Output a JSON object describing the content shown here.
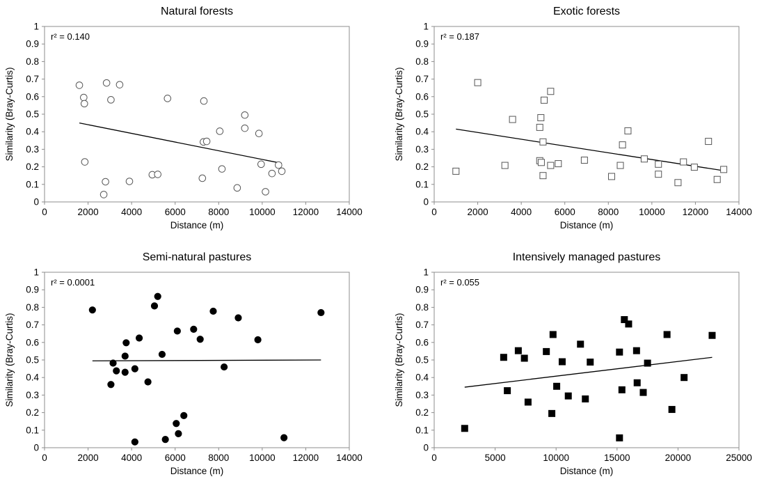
{
  "chart_data": [
    {
      "type": "scatter",
      "title": "Natural forests",
      "xlabel": "Distance (m)",
      "ylabel": "Similarity (Bray-Curtis)",
      "annotation": "r² = 0.140",
      "marker": "circle-open",
      "xlim": [
        0,
        14000
      ],
      "ylim": [
        0,
        1
      ],
      "xticks": [
        "0",
        "2000",
        "4000",
        "6000",
        "8000",
        "10000",
        "12000",
        "14000"
      ],
      "yticks": [
        "0",
        "0.1",
        "0.2",
        "0.3",
        "0.4",
        "0.5",
        "0.6",
        "0.7",
        "0.8",
        "0.9",
        "1"
      ],
      "grid": false,
      "points": [
        [
          1600,
          0.665
        ],
        [
          1800,
          0.595
        ],
        [
          1830,
          0.56
        ],
        [
          1850,
          0.228
        ],
        [
          2800,
          0.115
        ],
        [
          2720,
          0.042
        ],
        [
          2850,
          0.678
        ],
        [
          3050,
          0.582
        ],
        [
          3450,
          0.668
        ],
        [
          3900,
          0.117
        ],
        [
          4950,
          0.155
        ],
        [
          5200,
          0.157
        ],
        [
          5650,
          0.59
        ],
        [
          7250,
          0.135
        ],
        [
          7300,
          0.342
        ],
        [
          7320,
          0.575
        ],
        [
          7450,
          0.345
        ],
        [
          8050,
          0.403
        ],
        [
          8150,
          0.188
        ],
        [
          8850,
          0.08
        ],
        [
          9200,
          0.495
        ],
        [
          9200,
          0.42
        ],
        [
          9850,
          0.39
        ],
        [
          9950,
          0.215
        ],
        [
          10150,
          0.058
        ],
        [
          10450,
          0.162
        ],
        [
          10750,
          0.21
        ],
        [
          10900,
          0.175
        ]
      ],
      "trendline": [
        [
          1600,
          0.45
        ],
        [
          10900,
          0.22
        ]
      ]
    },
    {
      "type": "scatter",
      "title": "Exotic forests",
      "xlabel": "Distance (m)",
      "ylabel": "Similarity (Bray-Curtis)",
      "annotation": "r² = 0.187",
      "marker": "square-open",
      "xlim": [
        0,
        14000
      ],
      "ylim": [
        0,
        1
      ],
      "xticks": [
        "0",
        "2000",
        "4000",
        "6000",
        "8000",
        "10000",
        "12000",
        "14000"
      ],
      "yticks": [
        "0",
        "0.1",
        "0.2",
        "0.3",
        "0.4",
        "0.5",
        "0.6",
        "0.7",
        "0.8",
        "0.9",
        "1"
      ],
      "grid": false,
      "points": [
        [
          1000,
          0.175
        ],
        [
          2000,
          0.68
        ],
        [
          3250,
          0.208
        ],
        [
          3600,
          0.47
        ],
        [
          4850,
          0.235
        ],
        [
          4850,
          0.425
        ],
        [
          4900,
          0.48
        ],
        [
          4920,
          0.225
        ],
        [
          5000,
          0.15
        ],
        [
          5000,
          0.342
        ],
        [
          5050,
          0.58
        ],
        [
          5350,
          0.63
        ],
        [
          5350,
          0.208
        ],
        [
          5700,
          0.218
        ],
        [
          6900,
          0.238
        ],
        [
          8150,
          0.145
        ],
        [
          8550,
          0.208
        ],
        [
          8650,
          0.325
        ],
        [
          8900,
          0.405
        ],
        [
          9650,
          0.245
        ],
        [
          10300,
          0.215
        ],
        [
          10300,
          0.158
        ],
        [
          11200,
          0.11
        ],
        [
          11450,
          0.228
        ],
        [
          11950,
          0.198
        ],
        [
          12600,
          0.345
        ],
        [
          13000,
          0.128
        ],
        [
          13300,
          0.185
        ]
      ],
      "trendline": [
        [
          1000,
          0.415
        ],
        [
          13300,
          0.178
        ]
      ]
    },
    {
      "type": "scatter",
      "title": "Semi-natural pastures",
      "xlabel": "Distance (m)",
      "ylabel": "Similarity (Bray-Curtis)",
      "annotation": "r² = 0.0001",
      "marker": "circle-filled",
      "xlim": [
        0,
        14000
      ],
      "ylim": [
        0,
        1
      ],
      "xticks": [
        "0",
        "2000",
        "4000",
        "6000",
        "8000",
        "10000",
        "12000",
        "14000"
      ],
      "yticks": [
        "0",
        "0.1",
        "0.2",
        "0.3",
        "0.4",
        "0.5",
        "0.6",
        "0.7",
        "0.8",
        "0.9",
        "1"
      ],
      "grid": false,
      "points": [
        [
          2200,
          0.785
        ],
        [
          3050,
          0.36
        ],
        [
          3150,
          0.482
        ],
        [
          3300,
          0.438
        ],
        [
          3700,
          0.522
        ],
        [
          3700,
          0.43
        ],
        [
          3750,
          0.598
        ],
        [
          4150,
          0.45
        ],
        [
          4150,
          0.033
        ],
        [
          4350,
          0.625
        ],
        [
          4750,
          0.375
        ],
        [
          5050,
          0.808
        ],
        [
          5200,
          0.862
        ],
        [
          5400,
          0.532
        ],
        [
          5550,
          0.047
        ],
        [
          6050,
          0.138
        ],
        [
          6100,
          0.665
        ],
        [
          6150,
          0.08
        ],
        [
          6400,
          0.183
        ],
        [
          6850,
          0.675
        ],
        [
          7150,
          0.618
        ],
        [
          7750,
          0.778
        ],
        [
          8250,
          0.46
        ],
        [
          8900,
          0.74
        ],
        [
          9800,
          0.615
        ],
        [
          11000,
          0.057
        ],
        [
          12700,
          0.77
        ]
      ],
      "trendline": [
        [
          2200,
          0.495
        ],
        [
          12700,
          0.5
        ]
      ]
    },
    {
      "type": "scatter",
      "title": "Intensively managed pastures",
      "xlabel": "Distance (m)",
      "ylabel": "Similarity (Bray-Curtis)",
      "annotation": "r² = 0.055",
      "marker": "square-filled",
      "xlim": [
        0,
        25000
      ],
      "ylim": [
        0,
        1
      ],
      "xticks": [
        "0",
        "5000",
        "10000",
        "15000",
        "20000",
        "25000"
      ],
      "yticks": [
        "0",
        "0.1",
        "0.2",
        "0.3",
        "0.4",
        "0.5",
        "0.6",
        "0.7",
        "0.8",
        "0.9",
        "1"
      ],
      "grid": false,
      "points": [
        [
          2500,
          0.11
        ],
        [
          5700,
          0.515
        ],
        [
          6000,
          0.325
        ],
        [
          6900,
          0.553
        ],
        [
          7400,
          0.51
        ],
        [
          7700,
          0.26
        ],
        [
          9200,
          0.548
        ],
        [
          9650,
          0.195
        ],
        [
          9750,
          0.645
        ],
        [
          10050,
          0.35
        ],
        [
          10500,
          0.49
        ],
        [
          11000,
          0.295
        ],
        [
          12000,
          0.59
        ],
        [
          12400,
          0.278
        ],
        [
          12800,
          0.488
        ],
        [
          15200,
          0.545
        ],
        [
          15200,
          0.056
        ],
        [
          15400,
          0.33
        ],
        [
          15600,
          0.73
        ],
        [
          15950,
          0.705
        ],
        [
          16600,
          0.553
        ],
        [
          16650,
          0.37
        ],
        [
          17150,
          0.315
        ],
        [
          17500,
          0.482
        ],
        [
          19100,
          0.645
        ],
        [
          19500,
          0.218
        ],
        [
          20500,
          0.4
        ],
        [
          22800,
          0.64
        ]
      ],
      "trendline": [
        [
          2500,
          0.345
        ],
        [
          22800,
          0.515
        ]
      ]
    }
  ]
}
